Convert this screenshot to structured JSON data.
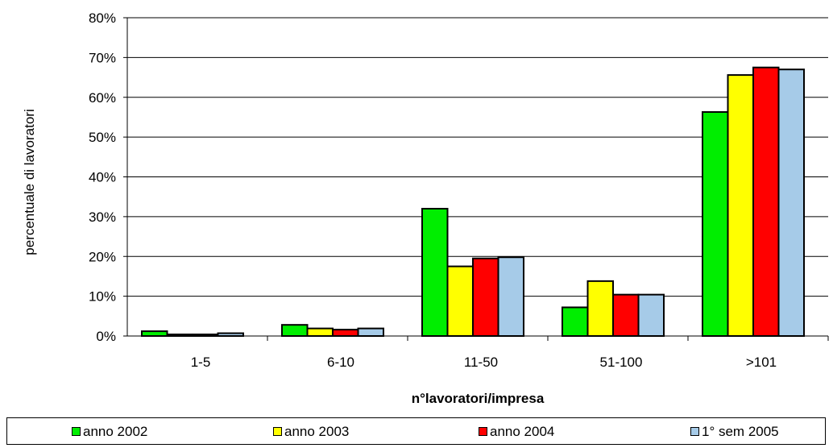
{
  "chart_data": {
    "type": "bar",
    "title": "",
    "xlabel": "n°lavoratori/impresa",
    "ylabel": "percentuale di  lavoratori",
    "categories": [
      "1-5",
      "6-10",
      "11-50",
      "51-100",
      ">101"
    ],
    "y_ticks": [
      "0%",
      "10%",
      "20%",
      "30%",
      "40%",
      "50%",
      "60%",
      "70%",
      "80%"
    ],
    "ylim": [
      0,
      80
    ],
    "y_unit": "%",
    "grid": true,
    "legend_position": "bottom",
    "series": [
      {
        "name": "anno 2002",
        "color": "#00ee00",
        "values": [
          1.2,
          2.8,
          32.0,
          7.2,
          56.3
        ]
      },
      {
        "name": "anno 2003",
        "color": "#ffff00",
        "values": [
          0.4,
          1.9,
          17.5,
          13.8,
          65.6
        ]
      },
      {
        "name": "anno 2004",
        "color": "#ff0000",
        "values": [
          0.4,
          1.6,
          19.5,
          10.4,
          67.5
        ]
      },
      {
        "name": "1° sem 2005",
        "color": "#a6cbe8",
        "values": [
          0.7,
          1.9,
          19.8,
          10.4,
          67.0
        ]
      }
    ]
  }
}
